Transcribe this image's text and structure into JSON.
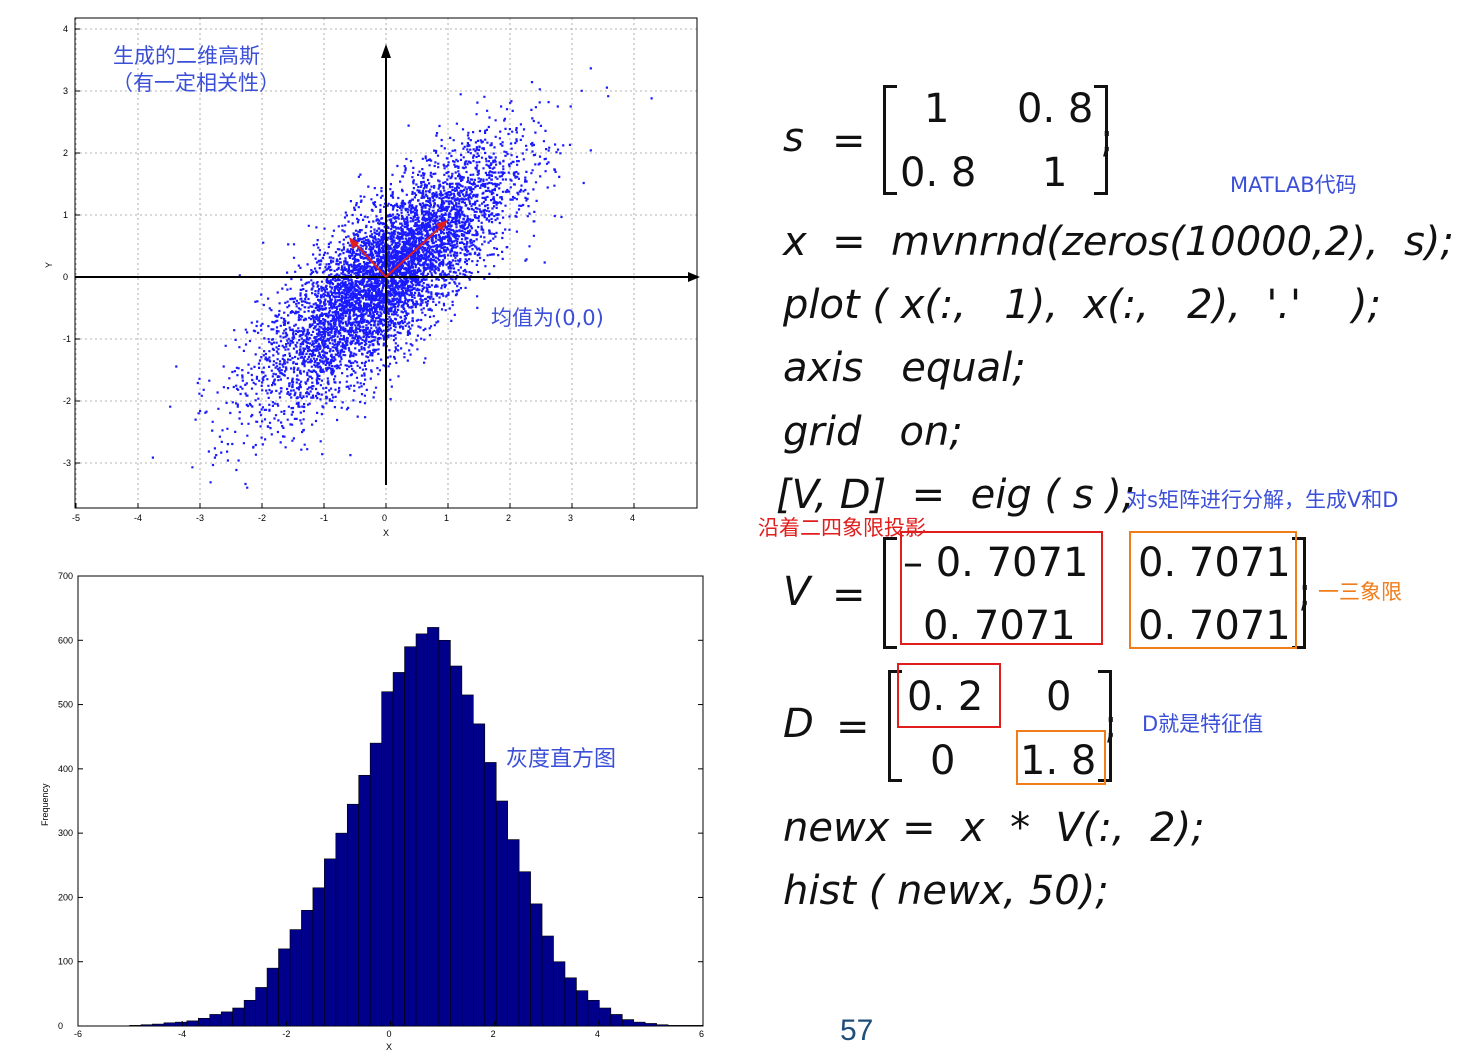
{
  "scatter": {
    "title_lines": [
      "生成的二维高斯",
      "（有一定相关性）"
    ],
    "mean_label": "均值为(0,0)",
    "xlabel": "X",
    "ylabel": "Y",
    "xticks": [
      "-5",
      "-4",
      "-3",
      "-2",
      "-1",
      "0",
      "1",
      "2",
      "3",
      "4"
    ],
    "yticks": [
      "4",
      "3",
      "2",
      "1",
      "0",
      "-1",
      "-2",
      "-3"
    ],
    "point_color": "#1a1aff",
    "arrow_color": "#e01e1e"
  },
  "hist": {
    "annotation": "灰度直方图",
    "xlabel": "X",
    "ylabel": "Frequency",
    "xticks": [
      "-6",
      "-4",
      "-2",
      "0",
      "2",
      "4",
      "6"
    ],
    "yticks": [
      "700",
      "600",
      "500",
      "400",
      "300",
      "200",
      "100",
      "0"
    ],
    "bar_color": "#00008b"
  },
  "chart_data": [
    {
      "type": "scatter",
      "title": "生成的二维高斯（有一定相关性）",
      "xlabel": "X",
      "ylabel": "Y",
      "xlim": [
        -5,
        5
      ],
      "ylim": [
        -3.5,
        4
      ],
      "grid": true,
      "n_points": 10000,
      "mean": [
        0,
        0
      ],
      "covariance": [
        [
          1,
          0.8
        ],
        [
          0.8,
          1
        ]
      ],
      "annotations": [
        "均值为(0,0)"
      ]
    },
    {
      "type": "bar",
      "title": "",
      "xlabel": "X",
      "ylabel": "Frequency",
      "xlim": [
        -6,
        6
      ],
      "ylim": [
        0,
        700
      ],
      "bins": 50,
      "annotations": [
        "灰度直方图"
      ],
      "bin_centers": [
        -4.9,
        -4.68,
        -4.46,
        -4.24,
        -4.02,
        -3.8,
        -3.58,
        -3.36,
        -3.14,
        -2.92,
        -2.7,
        -2.48,
        -2.26,
        -2.04,
        -1.82,
        -1.6,
        -1.38,
        -1.16,
        -0.94,
        -0.72,
        -0.5,
        -0.28,
        -0.06,
        0.16,
        0.38,
        0.6,
        0.82,
        1.04,
        1.26,
        1.48,
        1.7,
        1.92,
        2.14,
        2.36,
        2.58,
        2.8,
        3.02,
        3.24,
        3.46,
        3.68,
        3.9,
        4.12,
        4.34,
        4.56,
        4.78,
        5.0,
        5.22,
        5.44,
        5.66,
        5.88
      ],
      "values": [
        1,
        2,
        3,
        5,
        6,
        8,
        12,
        18,
        22,
        28,
        40,
        60,
        90,
        120,
        150,
        180,
        215,
        260,
        300,
        345,
        390,
        440,
        520,
        550,
        590,
        610,
        620,
        600,
        560,
        515,
        470,
        410,
        350,
        290,
        240,
        190,
        140,
        100,
        75,
        55,
        40,
        28,
        18,
        10,
        6,
        4,
        2,
        1,
        1,
        1
      ]
    }
  ],
  "code": {
    "line_x": "x  =  mvnrnd(zeros(10000,2),  s);",
    "line_plot": "plot ( x(:,   1),  x(:,   2),  '.'    );",
    "line_axis": "axis   equal;",
    "line_grid": "grid   on;",
    "line_eig": "[V, D]  =  eig ( s );",
    "line_newx": "newx =  x  *  V(:,  2);",
    "line_hist": "hist ( newx, 50);"
  },
  "matrix_s": {
    "label": "s",
    "eq": "=",
    "a11": "1",
    "a12": "0. 8",
    "a21": "0. 8",
    "a22": "1"
  },
  "matrix_v": {
    "label": "V",
    "eq": "=",
    "a11": "– 0. 7071",
    "a12": "0. 7071",
    "a21": "0. 7071",
    "a22": "0. 7071"
  },
  "matrix_d": {
    "label": "D",
    "eq": "=",
    "a11": "0. 2",
    "a12": "0",
    "a21": "0",
    "a22": "1. 8"
  },
  "notes": {
    "matlab": "MATLAB代码",
    "eig_note": "对s矩阵进行分解，生成V和D",
    "proj": "沿着二四象限投影",
    "quadrant": "一三象限",
    "eigval": "D就是特征值"
  },
  "page_number": "57",
  "colors": {
    "blue_note": "#3b4fd8",
    "orange": "#f07d1a",
    "red": "#e01e1e",
    "page_num": "#1f4e79"
  }
}
